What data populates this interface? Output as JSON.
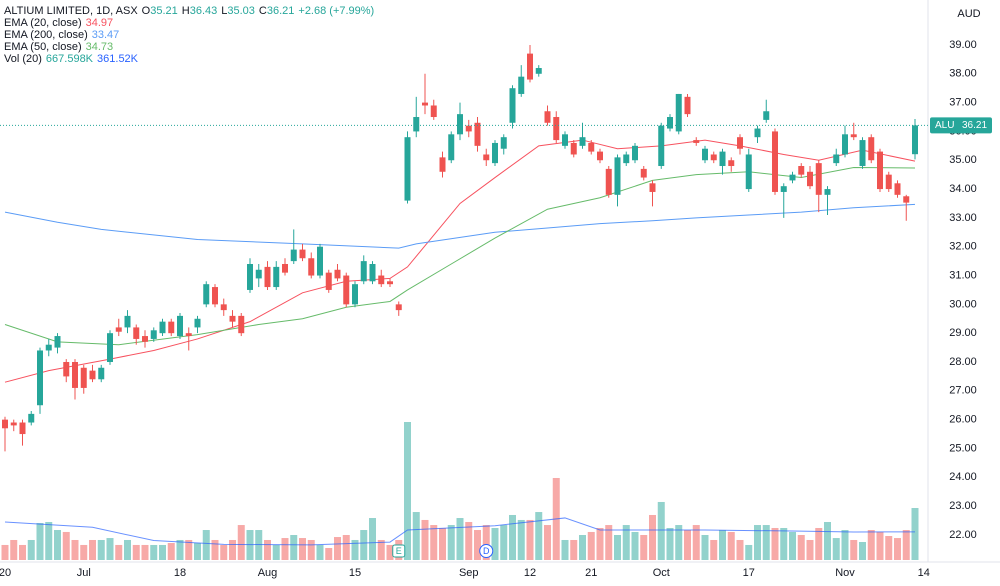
{
  "chart_data": {
    "type": "candlestick",
    "title": "ALTIUM LIMITED, 1D, ASX",
    "fields": [
      {
        "key": "O",
        "value": 35.21
      },
      {
        "key": "H",
        "value": 36.43
      },
      {
        "key": "L",
        "value": 35.03
      },
      {
        "key": "C",
        "value": 36.21
      }
    ],
    "change": "+2.68 (+7.99%)",
    "currency": "AUD",
    "symbol": "ALU",
    "categories": [
      "20",
      null,
      null,
      null,
      null,
      null,
      null,
      null,
      null,
      "Jul",
      null,
      null,
      null,
      null,
      null,
      null,
      null,
      null,
      null,
      null,
      "18",
      null,
      null,
      null,
      null,
      null,
      null,
      null,
      null,
      null,
      "Aug",
      null,
      null,
      null,
      null,
      null,
      null,
      null,
      null,
      null,
      "15",
      null,
      null,
      null,
      null,
      null,
      null,
      null,
      null,
      null,
      null,
      null,
      null,
      "Sep",
      null,
      null,
      null,
      null,
      null,
      null,
      "12",
      null,
      null,
      null,
      null,
      null,
      null,
      "21",
      null,
      null,
      null,
      null,
      null,
      null,
      null,
      "Oct",
      null,
      null,
      null,
      null,
      null,
      null,
      null,
      null,
      null,
      "17",
      null,
      null,
      null,
      null,
      null,
      null,
      null,
      null,
      null,
      null,
      "Nov",
      null,
      null,
      null,
      null,
      null,
      null,
      null,
      null,
      "14"
    ],
    "open": [
      26.0,
      25.9,
      25.9,
      25.9,
      26.5,
      28.4,
      28.5,
      28.0,
      28.0,
      27.8,
      27.7,
      27.4,
      28.0,
      29.2,
      29.2,
      29.2,
      28.9,
      28.8,
      29.0,
      29.4,
      28.9,
      29.0,
      29.2,
      30.0,
      30.6,
      30.0,
      29.6,
      29.6,
      30.5,
      30.9,
      31.3,
      30.6,
      31.4,
      31.5,
      31.9,
      31.6,
      31.0,
      31.1,
      31.2,
      31.0,
      30.0,
      30.8,
      30.8,
      31.0,
      30.8,
      30.0,
      33.6,
      36.0,
      37.0,
      36.9,
      35.1,
      35.0,
      35.9,
      36.2,
      36.3,
      35.2,
      34.9,
      35.4,
      36.3,
      37.3,
      38.7,
      38.0,
      36.7,
      36.5,
      35.5,
      35.6,
      35.5,
      35.6,
      35.3,
      34.7,
      33.8,
      34.9,
      35.0,
      34.7,
      34.2,
      34.8,
      36.1,
      36.0,
      37.2,
      35.7,
      35.0,
      35.2,
      34.8,
      35.0,
      35.8,
      34.0,
      35.8,
      36.4,
      36.0,
      33.9,
      34.3,
      34.8,
      34.6,
      34.9,
      33.8,
      34.9,
      35.2,
      35.9,
      34.8,
      35.8,
      35.3,
      34.5,
      34.2,
      33.75,
      35.21,
      null
    ],
    "high": [
      26.1,
      26.0,
      26.0,
      26.3,
      28.5,
      28.8,
      29.0,
      28.1,
      28.1,
      27.9,
      27.9,
      27.9,
      29.1,
      29.5,
      29.8,
      29.3,
      29.1,
      29.2,
      29.5,
      29.5,
      29.7,
      29.2,
      29.6,
      30.8,
      30.7,
      30.2,
      29.8,
      29.7,
      31.6,
      31.4,
      31.5,
      31.5,
      31.6,
      32.6,
      32.1,
      31.8,
      32.1,
      31.2,
      31.4,
      31.1,
      30.8,
      31.7,
      31.5,
      31.2,
      30.9,
      30.1,
      36.0,
      37.2,
      38.0,
      37.1,
      35.3,
      36.0,
      37.0,
      36.4,
      36.5,
      35.4,
      35.7,
      35.9,
      37.6,
      38.3,
      39.0,
      38.3,
      36.9,
      36.7,
      36.0,
      35.7,
      36.3,
      35.7,
      35.4,
      34.8,
      35.2,
      35.3,
      35.6,
      34.8,
      34.3,
      36.3,
      36.6,
      37.3,
      37.3,
      35.8,
      35.5,
      35.3,
      35.4,
      35.1,
      35.9,
      35.4,
      36.2,
      37.1,
      36.1,
      34.2,
      34.6,
      34.9,
      34.8,
      35.0,
      34.1,
      35.4,
      36.2,
      36.3,
      35.8,
      35.9,
      35.4,
      34.6,
      34.3,
      33.8,
      36.43,
      null
    ],
    "low": [
      24.9,
      25.6,
      25.1,
      25.8,
      26.2,
      28.2,
      28.3,
      27.3,
      26.7,
      26.9,
      27.3,
      27.3,
      27.9,
      28.9,
      29.0,
      28.6,
      28.5,
      28.7,
      28.9,
      28.9,
      28.8,
      28.4,
      29.0,
      29.9,
      29.9,
      29.6,
      29.2,
      28.9,
      30.4,
      30.6,
      30.5,
      30.5,
      31.0,
      31.4,
      31.5,
      30.9,
      30.9,
      30.4,
      30.8,
      29.9,
      29.9,
      30.7,
      30.7,
      30.6,
      30.6,
      29.6,
      33.5,
      35.8,
      36.6,
      36.4,
      34.4,
      34.9,
      35.7,
      35.8,
      35.3,
      34.8,
      34.8,
      35.2,
      36.1,
      37.2,
      37.7,
      37.9,
      36.2,
      35.6,
      35.4,
      35.1,
      35.4,
      35.2,
      34.9,
      33.7,
      33.4,
      34.8,
      34.9,
      34.3,
      33.4,
      34.7,
      36.0,
      35.9,
      36.5,
      35.5,
      34.9,
      34.9,
      34.5,
      34.6,
      35.2,
      33.9,
      35.6,
      36.3,
      33.8,
      33.0,
      34.2,
      34.4,
      34.0,
      33.2,
      33.1,
      34.8,
      35.1,
      35.7,
      34.7,
      34.9,
      33.9,
      33.9,
      33.7,
      32.9,
      35.03,
      null
    ],
    "close": [
      25.7,
      25.8,
      25.5,
      26.2,
      28.4,
      28.6,
      28.9,
      27.5,
      27.1,
      27.1,
      27.4,
      27.8,
      29.0,
      29.05,
      29.6,
      28.8,
      28.7,
      29.1,
      29.4,
      29.0,
      29.6,
      28.9,
      29.5,
      30.7,
      30.0,
      29.8,
      29.4,
      29.0,
      31.4,
      31.2,
      30.6,
      31.3,
      31.1,
      31.9,
      31.6,
      31.0,
      32.0,
      30.5,
      30.9,
      30.0,
      30.7,
      31.5,
      31.4,
      30.7,
      30.7,
      29.8,
      35.8,
      36.5,
      36.9,
      36.5,
      34.6,
      35.9,
      36.6,
      36.0,
      35.5,
      35.0,
      35.6,
      35.8,
      37.5,
      37.9,
      37.8,
      38.2,
      36.3,
      35.7,
      35.9,
      35.2,
      35.8,
      35.3,
      35.0,
      33.8,
      35.1,
      35.2,
      35.5,
      34.4,
      33.9,
      36.2,
      36.5,
      37.3,
      36.6,
      35.6,
      35.4,
      35.0,
      35.3,
      34.8,
      35.4,
      35.2,
      36.1,
      36.7,
      33.9,
      34.1,
      34.5,
      34.5,
      34.1,
      33.8,
      34.0,
      35.2,
      35.9,
      35.8,
      35.7,
      35.0,
      34.0,
      34.0,
      33.8,
      33.53,
      36.21,
      null
    ],
    "volume": [
      193000,
      257000,
      193000,
      257000,
      475000,
      488000,
      385000,
      360000,
      257000,
      193000,
      257000,
      257000,
      282000,
      193000,
      257000,
      193000,
      193000,
      193000,
      193000,
      218000,
      257000,
      257000,
      218000,
      385000,
      257000,
      193000,
      257000,
      449000,
      385000,
      385000,
      257000,
      193000,
      282000,
      321000,
      282000,
      257000,
      193000,
      154000,
      295000,
      321000,
      257000,
      385000,
      539000,
      257000,
      193000,
      257000,
      1772000,
      616000,
      514000,
      449000,
      411000,
      449000,
      539000,
      488000,
      385000,
      449000,
      411000,
      449000,
      578000,
      514000,
      514000,
      616000,
      449000,
      1053000,
      257000,
      257000,
      321000,
      360000,
      411000,
      449000,
      321000,
      449000,
      360000,
      321000,
      578000,
      745000,
      411000,
      449000,
      385000,
      449000,
      321000,
      257000,
      385000,
      360000,
      257000,
      193000,
      449000,
      449000,
      411000,
      411000,
      360000,
      321000,
      257000,
      411000,
      488000,
      282000,
      385000,
      257000,
      231000,
      385000,
      360000,
      308000,
      282000,
      385000,
      667598,
      null
    ],
    "up_color": "#26a69a",
    "down_color": "#ef5350",
    "volume_up_color": "#92d2cc",
    "volume_down_color": "#f7a9a7",
    "ylim": [
      21.13,
      40.56
    ],
    "yticks": [
      {
        "value": 22,
        "label": "22.00"
      },
      {
        "value": 23,
        "label": "23.00"
      },
      {
        "value": 24,
        "label": "24.00"
      },
      {
        "value": 25,
        "label": "25.00"
      },
      {
        "value": 26,
        "label": "26.00"
      },
      {
        "value": 27,
        "label": "27.00"
      },
      {
        "value": 28,
        "label": "28.00"
      },
      {
        "value": 29,
        "label": "29.00"
      },
      {
        "value": 30,
        "label": "30.00"
      },
      {
        "value": 31,
        "label": "31.00"
      },
      {
        "value": 32,
        "label": "32.00"
      },
      {
        "value": 33,
        "label": "33.00"
      },
      {
        "value": 34,
        "label": "34.00"
      },
      {
        "value": 35,
        "label": "35.00"
      },
      {
        "value": 36,
        "label": "36.00"
      },
      {
        "value": 37,
        "label": "37.00"
      },
      {
        "value": 38,
        "label": "38.00"
      },
      {
        "value": 39,
        "label": "39.00"
      }
    ],
    "grid": false,
    "lines": [
      {
        "name": "EMA (20, close)",
        "color": "#f7525f",
        "last": 34.97,
        "x": [
          0,
          5,
          12,
          17,
          22,
          28,
          34,
          39,
          44,
          46,
          49,
          52,
          56,
          61,
          66,
          70,
          75,
          80,
          84,
          89,
          93,
          98,
          104
        ],
        "values": [
          27.3,
          27.7,
          28.1,
          28.4,
          28.8,
          29.4,
          30.4,
          30.8,
          30.9,
          31.3,
          32.4,
          33.5,
          34.4,
          35.5,
          35.7,
          35.4,
          35.5,
          35.7,
          35.5,
          35.2,
          35.0,
          35.35,
          34.97
        ]
      },
      {
        "name": "EMA (200, close)",
        "color": "#5b9cf6",
        "last": 33.47,
        "x": [
          0,
          6,
          11,
          22,
          34,
          45,
          47,
          56,
          62,
          68,
          74,
          79,
          85,
          91,
          97,
          104
        ],
        "values": [
          33.2,
          32.85,
          32.6,
          32.25,
          32.1,
          31.95,
          32.1,
          32.5,
          32.65,
          32.8,
          32.9,
          33.0,
          33.1,
          33.2,
          33.35,
          33.47
        ]
      },
      {
        "name": "EMA (50, close)",
        "color": "#66bb6a",
        "last": 34.73,
        "x": [
          0,
          6,
          13,
          22,
          29,
          34,
          39,
          44,
          46,
          51,
          56,
          62,
          68,
          74,
          79,
          85,
          91,
          97,
          104
        ],
        "values": [
          29.3,
          28.7,
          28.6,
          28.95,
          29.3,
          29.5,
          29.9,
          30.1,
          30.5,
          31.4,
          32.3,
          33.3,
          33.7,
          34.3,
          34.5,
          34.6,
          34.4,
          34.75,
          34.73
        ]
      }
    ],
    "volume_ma": {
      "name": "Vol (20)",
      "color": "#2962ff",
      "labels": [
        "667.598K",
        "361.52K"
      ],
      "x": [
        0,
        10,
        17,
        25,
        35,
        44,
        46,
        56,
        64,
        68,
        80,
        90,
        97,
        104
      ],
      "values": [
        488000,
        420000,
        250000,
        200000,
        195000,
        230000,
        385000,
        440000,
        540000,
        385000,
        385000,
        372000,
        360000,
        361520
      ]
    },
    "events": [
      {
        "label": "E",
        "index": 45
      },
      {
        "label": "D",
        "index": 55
      }
    ]
  }
}
